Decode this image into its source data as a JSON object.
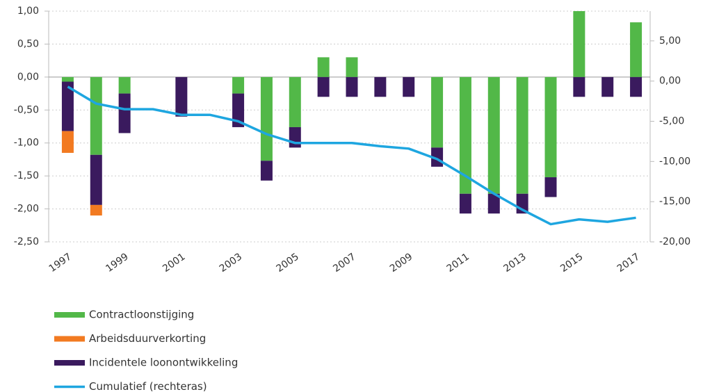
{
  "chart_data": {
    "type": "bar",
    "categories": [
      "1997",
      null,
      "1999",
      null,
      "2001",
      null,
      "2003",
      null,
      "2005",
      null,
      "2007",
      null,
      "2009",
      null,
      "2011",
      null,
      "2013",
      null,
      "2015",
      null,
      "2017"
    ],
    "series": [
      {
        "name": "Contractloonstijging",
        "color": "#52b848",
        "values": [
          -0.07,
          -1.18,
          -0.25,
          0,
          0,
          0,
          -0.25,
          -1.27,
          -0.76,
          0.3,
          0.3,
          0,
          0,
          -1.07,
          -1.77,
          -1.77,
          -1.77,
          -1.52,
          1.0,
          0,
          0.83
        ]
      },
      {
        "name": "Arbeidsduurverkorting",
        "color": "#f27a21",
        "values": [
          -0.33,
          -0.16,
          0,
          0,
          0,
          0,
          0,
          0,
          0,
          0,
          0,
          0,
          0,
          0,
          0,
          0,
          0,
          0,
          0,
          0,
          0
        ]
      },
      {
        "name": "Incidentele loonontwikkeling",
        "color": "#3a1a5e",
        "values": [
          -0.75,
          -0.76,
          -0.6,
          0,
          -0.6,
          0,
          -0.51,
          -0.3,
          -0.31,
          -0.3,
          -0.3,
          -0.3,
          -0.3,
          -0.29,
          -0.3,
          -0.3,
          -0.3,
          -0.3,
          -0.3,
          -0.3,
          -0.3
        ]
      },
      {
        "name": "Cumulatief (rechteras)",
        "color": "#1ea6e0",
        "type": "line",
        "axis": "y2",
        "values": [
          -0.7,
          -2.8,
          -3.5,
          -3.5,
          -4.2,
          -4.2,
          -5.0,
          -6.6,
          -7.7,
          -7.7,
          -7.7,
          -8.1,
          -8.4,
          -9.7,
          -11.8,
          -14.0,
          -16.0,
          -17.8,
          -17.2,
          -17.5,
          -17.0
        ]
      }
    ],
    "ylim": [
      -2.5,
      1.0
    ],
    "yticks": [
      {
        "value": -2.5,
        "label": "-2,50"
      },
      {
        "value": -2.0,
        "label": "-2,00"
      },
      {
        "value": -1.5,
        "label": "-1,50"
      },
      {
        "value": -1.0,
        "label": "-1,00"
      },
      {
        "value": -0.5,
        "label": "-0,50"
      },
      {
        "value": 0,
        "label": "0,00"
      },
      {
        "value": 0.5,
        "label": "0,50"
      },
      {
        "value": 1.0,
        "label": "1,00"
      }
    ],
    "y2lim": [
      -20,
      8.7
    ],
    "y2ticks": [
      {
        "value": -20,
        "label": "-20,00"
      },
      {
        "value": -15,
        "label": "-15,00"
      },
      {
        "value": -10,
        "label": "-10,00"
      },
      {
        "value": -5,
        "label": "-5,00"
      },
      {
        "value": 0,
        "label": "0,00"
      },
      {
        "value": 5,
        "label": "5,00"
      }
    ],
    "grid": true
  }
}
